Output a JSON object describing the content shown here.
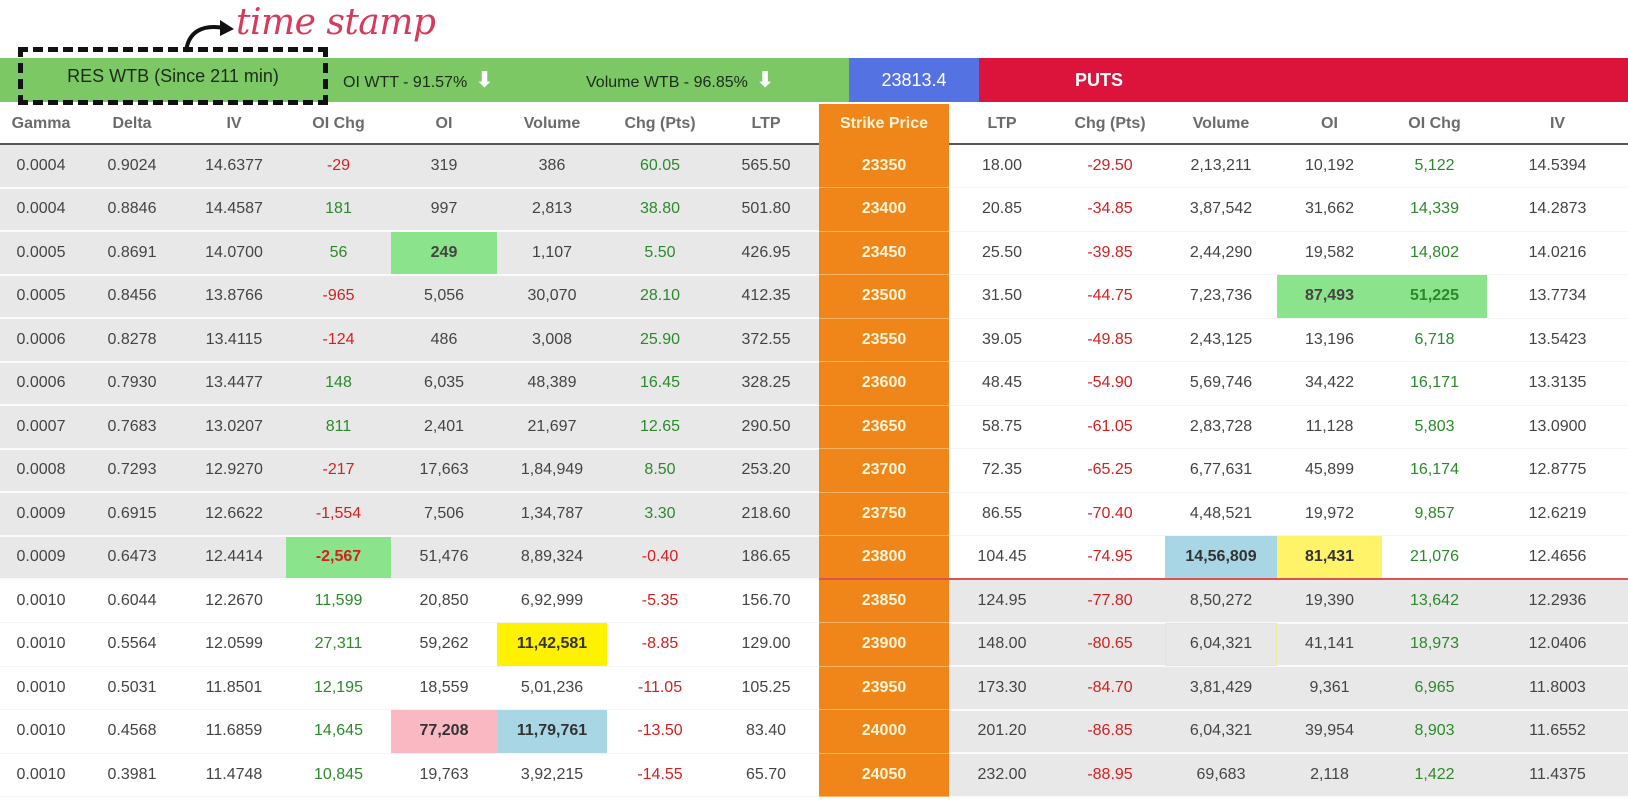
{
  "annotation": {
    "label": "time stamp"
  },
  "topbar": {
    "res_label": "RES WTB (Since 211 min)",
    "oi_label": "OI WTT - 91.57%",
    "volume_label": "Volume WTB - 96.85%",
    "arrow_glyph": "🡇",
    "spot_price": "23813.4",
    "puts_label": "PUTS",
    "colors": {
      "green": "#7cc864",
      "blue": "#5572e2",
      "red": "#dc143c",
      "strike": "#f0861a"
    }
  },
  "columns": {
    "calls": [
      "Gamma",
      "Delta",
      "IV",
      "OI Chg",
      "OI",
      "Volume",
      "Chg (Pts)",
      "LTP"
    ],
    "strike": "Strike Price",
    "puts": [
      "LTP",
      "Chg (Pts)",
      "Volume",
      "OI",
      "OI Chg",
      "IV"
    ]
  },
  "rows": [
    {
      "gamma": "0.0004",
      "delta": "0.9024",
      "civ": "14.6377",
      "coichg": "-29",
      "coi": "319",
      "cvol": "386",
      "cchg": "60.05",
      "cltp": "565.50",
      "strike": "23350",
      "pltp": "18.00",
      "pchg": "-29.50",
      "pvol": "2,13,211",
      "poi": "10,192",
      "poichg": "5,122",
      "piv": "14.5394"
    },
    {
      "gamma": "0.0004",
      "delta": "0.8846",
      "civ": "14.4587",
      "coichg": "181",
      "coi": "997",
      "cvol": "2,813",
      "cchg": "38.80",
      "cltp": "501.80",
      "strike": "23400",
      "pltp": "20.85",
      "pchg": "-34.85",
      "pvol": "3,87,542",
      "poi": "31,662",
      "poichg": "14,339",
      "piv": "14.2873"
    },
    {
      "gamma": "0.0005",
      "delta": "0.8691",
      "civ": "14.0700",
      "coichg": "56",
      "coi": "249",
      "cvol": "1,107",
      "cchg": "5.50",
      "cltp": "426.95",
      "strike": "23450",
      "pltp": "25.50",
      "pchg": "-39.85",
      "pvol": "2,44,290",
      "poi": "19,582",
      "poichg": "14,802",
      "piv": "14.0216"
    },
    {
      "gamma": "0.0005",
      "delta": "0.8456",
      "civ": "13.8766",
      "coichg": "-965",
      "coi": "5,056",
      "cvol": "30,070",
      "cchg": "28.10",
      "cltp": "412.35",
      "strike": "23500",
      "pltp": "31.50",
      "pchg": "-44.75",
      "pvol": "7,23,736",
      "poi": "87,493",
      "poichg": "51,225",
      "piv": "13.7734"
    },
    {
      "gamma": "0.0006",
      "delta": "0.8278",
      "civ": "13.4115",
      "coichg": "-124",
      "coi": "486",
      "cvol": "3,008",
      "cchg": "25.90",
      "cltp": "372.55",
      "strike": "23550",
      "pltp": "39.05",
      "pchg": "-49.85",
      "pvol": "2,43,125",
      "poi": "13,196",
      "poichg": "6,718",
      "piv": "13.5423"
    },
    {
      "gamma": "0.0006",
      "delta": "0.7930",
      "civ": "13.4477",
      "coichg": "148",
      "coi": "6,035",
      "cvol": "48,389",
      "cchg": "16.45",
      "cltp": "328.25",
      "strike": "23600",
      "pltp": "48.45",
      "pchg": "-54.90",
      "pvol": "5,69,746",
      "poi": "34,422",
      "poichg": "16,171",
      "piv": "13.3135"
    },
    {
      "gamma": "0.0007",
      "delta": "0.7683",
      "civ": "13.0207",
      "coichg": "811",
      "coi": "2,401",
      "cvol": "21,697",
      "cchg": "12.65",
      "cltp": "290.50",
      "strike": "23650",
      "pltp": "58.75",
      "pchg": "-61.05",
      "pvol": "2,83,728",
      "poi": "11,128",
      "poichg": "5,803",
      "piv": "13.0900"
    },
    {
      "gamma": "0.0008",
      "delta": "0.7293",
      "civ": "12.9270",
      "coichg": "-217",
      "coi": "17,663",
      "cvol": "1,84,949",
      "cchg": "8.50",
      "cltp": "253.20",
      "strike": "23700",
      "pltp": "72.35",
      "pchg": "-65.25",
      "pvol": "6,77,631",
      "poi": "45,899",
      "poichg": "16,174",
      "piv": "12.8775"
    },
    {
      "gamma": "0.0009",
      "delta": "0.6915",
      "civ": "12.6622",
      "coichg": "-1,554",
      "coi": "7,506",
      "cvol": "1,34,787",
      "cchg": "3.30",
      "cltp": "218.60",
      "strike": "23750",
      "pltp": "86.55",
      "pchg": "-70.40",
      "pvol": "4,48,521",
      "poi": "19,972",
      "poichg": "9,857",
      "piv": "12.6219"
    },
    {
      "gamma": "0.0009",
      "delta": "0.6473",
      "civ": "12.4414",
      "coichg": "-2,567",
      "coi": "51,476",
      "cvol": "8,89,324",
      "cchg": "-0.40",
      "cltp": "186.65",
      "strike": "23800",
      "pltp": "104.45",
      "pchg": "-74.95",
      "pvol": "14,56,809",
      "poi": "81,431",
      "poichg": "21,076",
      "piv": "12.4656"
    },
    {
      "gamma": "0.0010",
      "delta": "0.6044",
      "civ": "12.2670",
      "coichg": "11,599",
      "coi": "20,850",
      "cvol": "6,92,999",
      "cchg": "-5.35",
      "cltp": "156.70",
      "strike": "23850",
      "pltp": "124.95",
      "pchg": "-77.80",
      "pvol": "8,50,272",
      "poi": "19,390",
      "poichg": "13,642",
      "piv": "12.2936"
    },
    {
      "gamma": "0.0010",
      "delta": "0.5564",
      "civ": "12.0599",
      "coichg": "27,311",
      "coi": "59,262",
      "cvol": "11,42,581",
      "cchg": "-8.85",
      "cltp": "129.00",
      "strike": "23900",
      "pltp": "148.00",
      "pchg": "-80.65",
      "pvol": "6,04,321",
      "poi": "41,141",
      "poichg": "18,973",
      "piv": "12.0406"
    },
    {
      "gamma": "0.0010",
      "delta": "0.5031",
      "civ": "11.8501",
      "coichg": "12,195",
      "coi": "18,559",
      "cvol": "5,01,236",
      "cchg": "-11.05",
      "cltp": "105.25",
      "strike": "23950",
      "pltp": "173.30",
      "pchg": "-84.70",
      "pvol": "3,81,429",
      "poi": "9,361",
      "poichg": "6,965",
      "piv": "11.8003"
    },
    {
      "gamma": "0.0010",
      "delta": "0.4568",
      "civ": "11.6859",
      "coichg": "14,645",
      "coi": "77,208",
      "cvol": "11,79,761",
      "cchg": "-13.50",
      "cltp": "83.40",
      "strike": "24000",
      "pltp": "201.20",
      "pchg": "-86.85",
      "pvol": "6,04,321",
      "poi": "39,954",
      "poichg": "8,903",
      "piv": "11.6552"
    },
    {
      "gamma": "0.0010",
      "delta": "0.3981",
      "civ": "11.4748",
      "coichg": "10,845",
      "coi": "19,763",
      "cvol": "3,92,215",
      "cchg": "-14.55",
      "cltp": "65.70",
      "strike": "24050",
      "pltp": "232.00",
      "pchg": "-88.95",
      "pvol": "69,683",
      "poi": "2,118",
      "poichg": "1,422",
      "piv": "11.4375"
    }
  ],
  "highlights": {
    "2.coi": "hl-green",
    "3.poi": "hl-green",
    "3.poichg": "hl-green",
    "9.coichg": "hl-green",
    "9.pvol": "hl-blue",
    "9.poi": "hl-lyellow",
    "11.cvol": "hl-yellow",
    "11.pvol": "hl-outline",
    "13.coi": "hl-pink",
    "13.cvol": "hl-blue"
  }
}
